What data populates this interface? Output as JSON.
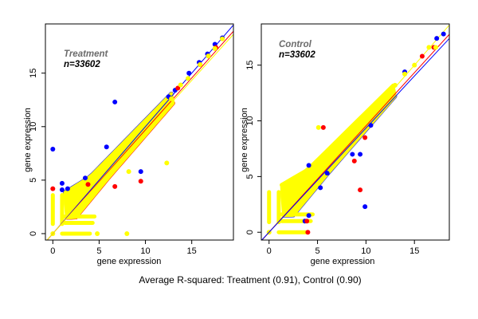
{
  "figure": {
    "caption": "Average R-squared: Treatment (0.91), Control (0.90)"
  },
  "chart_data": [
    {
      "type": "scatter",
      "panel": "left",
      "title": "",
      "annotation_title": "Treatment",
      "annotation_n": "n=33602",
      "xlabel": "gene expression",
      "ylabel": "gene expression",
      "xlim": [
        -0.8,
        19.5
      ],
      "ylim": [
        -0.6,
        19.6
      ],
      "xticks": [
        0,
        5,
        10,
        15
      ],
      "yticks": [
        0,
        5,
        10,
        15
      ],
      "grid": false,
      "colors": {
        "blue": "#0000ff",
        "red": "#ff0000",
        "yellow": "#ffff00"
      },
      "fit_lines": [
        {
          "color": "blue",
          "slope": 1.0,
          "intercept": 0.0
        },
        {
          "color": "red",
          "slope": 0.97,
          "intercept": 0.0
        },
        {
          "color": "yellow",
          "slope": 0.955,
          "intercept": 0.0
        }
      ],
      "dense_band": {
        "x_from": 0,
        "x_to": 13,
        "upper_offset": 1.6,
        "lower_slope": 1.0
      },
      "series": [
        {
          "name": "blue",
          "points": [
            [
              0,
              7.9
            ],
            [
              1.0,
              4.7
            ],
            [
              1.0,
              4.1
            ],
            [
              1.6,
              4.2
            ],
            [
              3.5,
              5.2
            ],
            [
              5.8,
              8.1
            ],
            [
              6.7,
              12.3
            ],
            [
              9.5,
              5.8
            ],
            [
              14.7,
              15.0
            ],
            [
              15.8,
              16.0
            ],
            [
              16.7,
              16.8
            ],
            [
              17.5,
              17.7
            ],
            [
              18.3,
              18.3
            ],
            [
              12.5,
              12.8
            ],
            [
              13.2,
              13.4
            ]
          ]
        },
        {
          "name": "red",
          "points": [
            [
              0,
              4.2
            ],
            [
              6.7,
              4.4
            ],
            [
              9.5,
              4.9
            ],
            [
              3.8,
              4.6
            ],
            [
              13.5,
              13.6
            ],
            [
              15.9,
              15.8
            ],
            [
              16.8,
              16.6
            ],
            [
              17.6,
              17.4
            ]
          ]
        },
        {
          "name": "yellow",
          "points": [
            [
              4.8,
              0
            ],
            [
              8.0,
              0
            ],
            [
              8.2,
              5.8
            ],
            [
              12.3,
              6.6
            ],
            [
              13.8,
              13.9
            ],
            [
              15.9,
              15.8
            ],
            [
              16.8,
              16.6
            ],
            [
              17.5,
              17.3
            ],
            [
              18.3,
              18.2
            ],
            [
              14.6,
              14.5
            ],
            [
              12.8,
              12.6
            ]
          ]
        }
      ]
    },
    {
      "type": "scatter",
      "panel": "right",
      "title": "",
      "annotation_title": "Control",
      "annotation_n": "n=33602",
      "xlabel": "gene expression",
      "ylabel": "gene expression",
      "xlim": [
        -0.8,
        18.6
      ],
      "ylim": [
        -0.7,
        18.7
      ],
      "xticks": [
        0,
        5,
        10,
        15
      ],
      "yticks": [
        0,
        5,
        10,
        15
      ],
      "grid": false,
      "colors": {
        "blue": "#0000ff",
        "red": "#ff0000",
        "yellow": "#ffff00"
      },
      "fit_lines": [
        {
          "color": "yellow",
          "slope": 1.0,
          "intercept": 0.0
        },
        {
          "color": "red",
          "slope": 0.955,
          "intercept": 0.0
        },
        {
          "color": "blue",
          "slope": 0.935,
          "intercept": 0.0
        }
      ],
      "dense_band": {
        "x_from": 0,
        "x_to": 13,
        "upper_offset": 2.0,
        "lower_slope": 1.0
      },
      "series": [
        {
          "name": "blue",
          "points": [
            [
              4.1,
              6.0
            ],
            [
              8.6,
              7.0
            ],
            [
              9.4,
              7.0
            ],
            [
              10.5,
              9.6
            ],
            [
              9.9,
              2.3
            ],
            [
              17.3,
              17.4
            ],
            [
              18.0,
              17.8
            ],
            [
              14.0,
              14.4
            ],
            [
              4.1,
              1.5
            ],
            [
              5.3,
              4.0
            ],
            [
              6.0,
              5.3
            ],
            [
              3.7,
              1.0
            ]
          ]
        },
        {
          "name": "red",
          "points": [
            [
              5.6,
              9.4
            ],
            [
              8.8,
              6.4
            ],
            [
              9.4,
              3.8
            ],
            [
              9.9,
              8.5
            ],
            [
              17.0,
              16.6
            ],
            [
              15.8,
              15.8
            ],
            [
              3.9,
              1.0
            ],
            [
              4.0,
              0
            ]
          ]
        },
        {
          "name": "yellow",
          "points": [
            [
              5.1,
              9.4
            ],
            [
              6.6,
              7.7
            ],
            [
              16.5,
              16.6
            ],
            [
              17.2,
              16.6
            ],
            [
              15.0,
              15.0
            ],
            [
              14.0,
              14.2
            ],
            [
              12.0,
              12.2
            ],
            [
              13.0,
              13.2
            ]
          ]
        }
      ]
    }
  ]
}
